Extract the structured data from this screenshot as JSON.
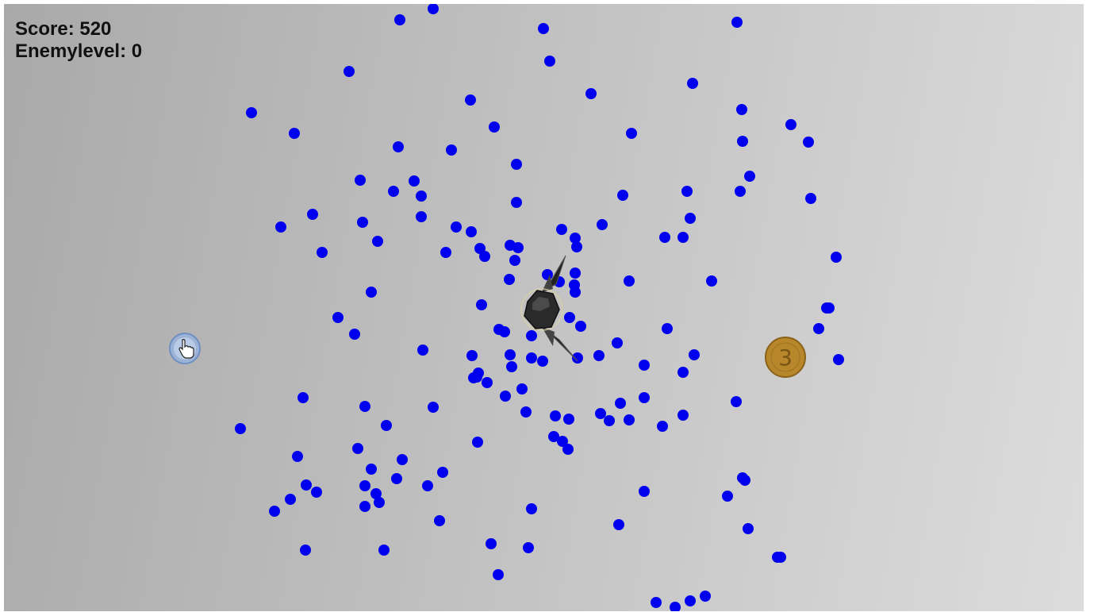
{
  "hud": {
    "score_label": "Score: 520",
    "enemy_level_label": "Enemylevel: 0"
  },
  "coin": {
    "label": "3",
    "color": "#b8862b"
  },
  "colors": {
    "enemy": "#0000ee",
    "background": "#bfbfbf"
  },
  "icons": {
    "cursor": "hand-pointer-icon",
    "player": "hexagon-ship-icon"
  },
  "enemy_count": 196
}
